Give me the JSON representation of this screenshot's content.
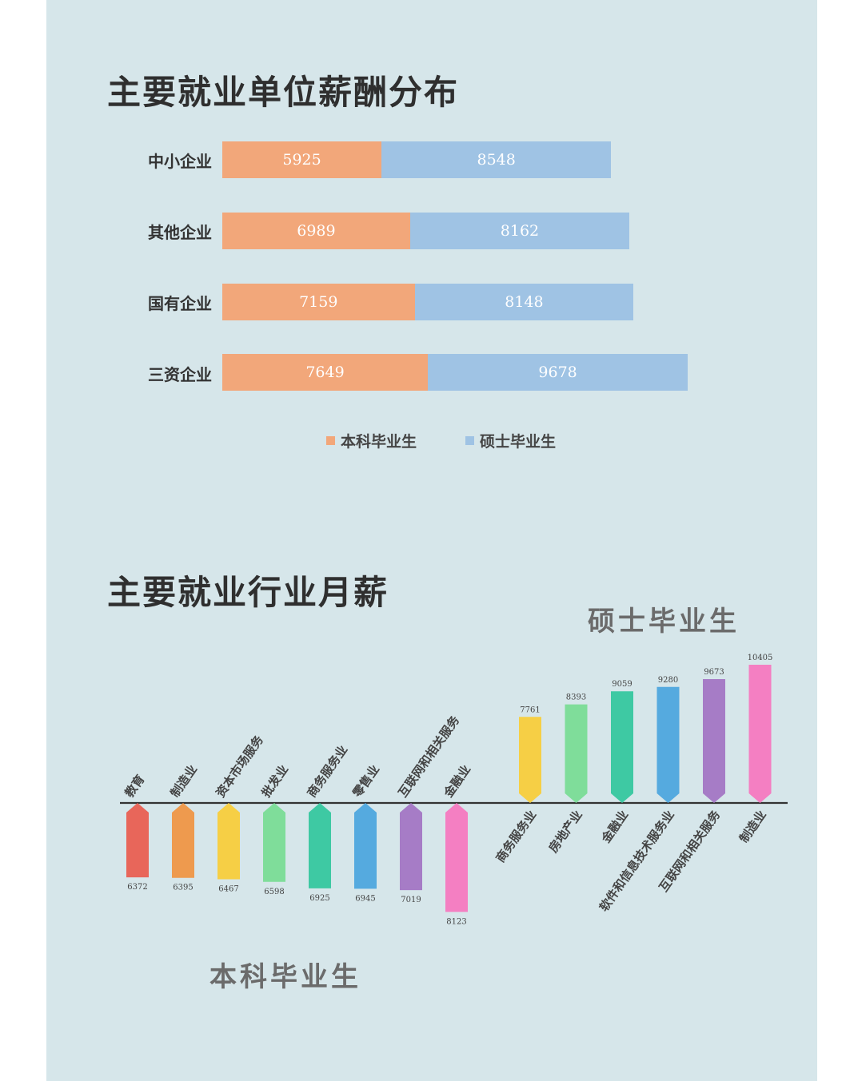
{
  "chart_data": [
    {
      "type": "bar",
      "orientation": "horizontal",
      "stacked": true,
      "title": "主要就业单位薪酬分布",
      "categories": [
        "中小企业",
        "其他企业",
        "国有企业",
        "三资企业"
      ],
      "series": [
        {
          "name": "本科毕业生",
          "color": "#f2a77a",
          "values": [
            5925,
            6989,
            7159,
            7649
          ]
        },
        {
          "name": "硕士毕业生",
          "color": "#9fc3e4",
          "values": [
            8548,
            8162,
            8148,
            9678
          ]
        }
      ],
      "legend_position": "bottom"
    },
    {
      "type": "bar",
      "title": "主要就业行业月薪",
      "groups": [
        {
          "name": "本科毕业生",
          "direction": "down",
          "categories": [
            "教育",
            "制造业",
            "资本市场服务",
            "批发业",
            "商务服务业",
            "零售业",
            "互联网和相关服务",
            "金融业"
          ],
          "values": [
            6372,
            6395,
            6467,
            6598,
            6925,
            6945,
            7019,
            8123
          ],
          "colors": [
            "#e8665a",
            "#ee9a4e",
            "#f6cf45",
            "#7fdd9a",
            "#3ec9a3",
            "#55aadf",
            "#a67cc6",
            "#f47fc2"
          ]
        },
        {
          "name": "硕士毕业生",
          "direction": "up",
          "categories": [
            "商务服务业",
            "房地产业",
            "金融业",
            "软件和信息技术服务业",
            "互联网和相关服务",
            "制造业"
          ],
          "values": [
            7761,
            8393,
            9059,
            9280,
            9673,
            10405
          ],
          "colors": [
            "#f6cf45",
            "#7fdd9a",
            "#3ec9a3",
            "#55aadf",
            "#a67cc6",
            "#f47fc2"
          ]
        }
      ]
    }
  ]
}
